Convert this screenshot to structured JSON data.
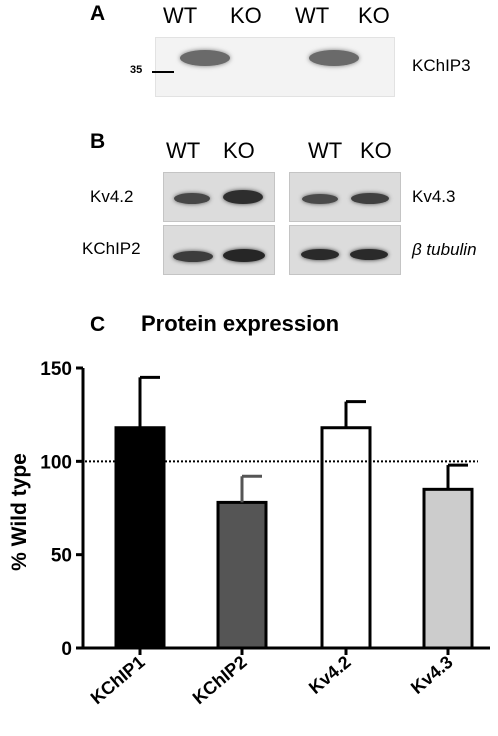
{
  "panel_a": {
    "letter": "A",
    "lanes": [
      "WT",
      "KO",
      "WT",
      "KO"
    ],
    "marker": "35",
    "label": "KChIP3"
  },
  "panel_b": {
    "letter": "B",
    "left_lanes": [
      "WT",
      "KO"
    ],
    "right_lanes": [
      "WT",
      "KO"
    ],
    "left_labels": [
      "Kv4.2",
      "KChIP2"
    ],
    "right_labels": [
      "Kv4.3",
      "β tubulin"
    ]
  },
  "panel_c": {
    "letter": "C"
  },
  "chart_data": {
    "type": "bar",
    "title": "Protein expression",
    "ylabel": "% Wild type",
    "categories": [
      "KChIP1",
      "KChIP2",
      "Kv4.2",
      "Kv4.3"
    ],
    "values": [
      118,
      78,
      118,
      85
    ],
    "errors": [
      27,
      14,
      14,
      13
    ],
    "colors": [
      "#000000",
      "#555555",
      "#ffffff",
      "#cccccc"
    ],
    "ylim": [
      0,
      150
    ],
    "yticks": [
      0,
      50,
      100,
      150
    ],
    "reference_line": 100,
    "grid": false,
    "legend": "none"
  }
}
